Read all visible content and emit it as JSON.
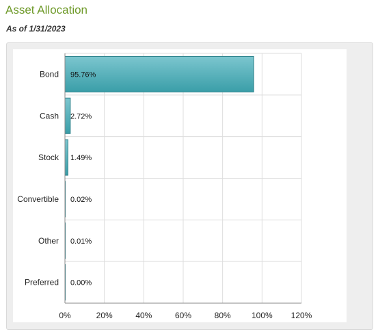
{
  "header": {
    "title": "Asset Allocation",
    "as_of": "As of 1/31/2023"
  },
  "colors": {
    "title": "#6f9a2a",
    "bar_fill_top": "#7cc6cf",
    "bar_fill_bottom": "#3a9ea8",
    "bar_stroke": "#2a7f88",
    "grid": "#dddddd",
    "axis": "#888888"
  },
  "chart_data": {
    "type": "bar",
    "orientation": "horizontal",
    "title": "",
    "xlabel": "",
    "ylabel": "",
    "categories": [
      "Bond",
      "Cash",
      "Stock",
      "Convertible",
      "Other",
      "Preferred"
    ],
    "values": [
      95.76,
      2.72,
      1.49,
      0.02,
      0.01,
      0.0
    ],
    "data_labels": [
      "95.76%",
      "2.72%",
      "1.49%",
      "0.02%",
      "0.01%",
      "0.00%"
    ],
    "xlim": [
      0,
      120
    ],
    "x_ticks": [
      0,
      20,
      40,
      60,
      80,
      100,
      120
    ],
    "x_tick_labels": [
      "0%",
      "20%",
      "40%",
      "60%",
      "80%",
      "100%",
      "120%"
    ],
    "grid": true,
    "legend": "none"
  }
}
